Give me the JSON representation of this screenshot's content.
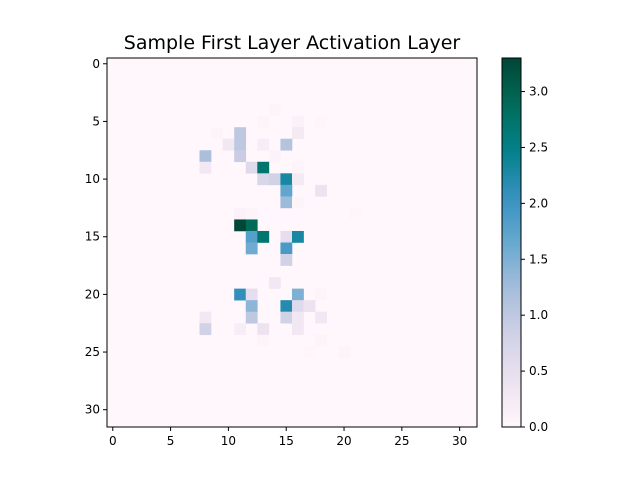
{
  "chart_data": {
    "type": "heatmap",
    "title": "Sample First Layer Activation Layer",
    "xlabel": "",
    "ylabel": "",
    "rows": 32,
    "cols": 32,
    "xlim": [
      -0.5,
      31.5
    ],
    "ylim": [
      31.5,
      -0.5
    ],
    "x_ticks": [
      0,
      5,
      10,
      15,
      20,
      25,
      30
    ],
    "y_ticks": [
      0,
      5,
      10,
      15,
      20,
      25,
      30
    ],
    "colormap": "PuBuGn",
    "colorbar": {
      "min": 0.0,
      "max": 3.3,
      "ticks": [
        "0.0",
        "0.5",
        "1.0",
        "1.5",
        "2.0",
        "2.5",
        "3.0"
      ]
    },
    "background_value": 0.0,
    "cells": [
      [
        4,
        14,
        0.05
      ],
      [
        5,
        13,
        0.06
      ],
      [
        5,
        16,
        0.1
      ],
      [
        5,
        18,
        0.04
      ],
      [
        6,
        9,
        0.05
      ],
      [
        6,
        11,
        1.0
      ],
      [
        6,
        16,
        0.25
      ],
      [
        7,
        10,
        0.3
      ],
      [
        7,
        11,
        1.0
      ],
      [
        7,
        13,
        0.2
      ],
      [
        7,
        15,
        1.1
      ],
      [
        8,
        8,
        1.2
      ],
      [
        8,
        11,
        0.9
      ],
      [
        8,
        14,
        0.08
      ],
      [
        9,
        8,
        0.3
      ],
      [
        9,
        12,
        0.6
      ],
      [
        9,
        13,
        2.7
      ],
      [
        9,
        16,
        0.05
      ],
      [
        10,
        13,
        0.7
      ],
      [
        10,
        14,
        0.8
      ],
      [
        10,
        15,
        2.3
      ],
      [
        10,
        16,
        0.25
      ],
      [
        11,
        15,
        1.7
      ],
      [
        11,
        18,
        0.4
      ],
      [
        12,
        15,
        1.3
      ],
      [
        12,
        16,
        0.06
      ],
      [
        13,
        11,
        0.1
      ],
      [
        13,
        12,
        0.05
      ],
      [
        13,
        21,
        0.03
      ],
      [
        14,
        11,
        3.3
      ],
      [
        14,
        12,
        2.9
      ],
      [
        15,
        12,
        1.8
      ],
      [
        15,
        13,
        2.7
      ],
      [
        15,
        15,
        0.5
      ],
      [
        15,
        16,
        2.3
      ],
      [
        16,
        12,
        1.6
      ],
      [
        16,
        15,
        1.9
      ],
      [
        17,
        15,
        0.8
      ],
      [
        19,
        14,
        0.3
      ],
      [
        20,
        11,
        2.1
      ],
      [
        20,
        12,
        0.5
      ],
      [
        20,
        16,
        1.5
      ],
      [
        20,
        18,
        0.06
      ],
      [
        21,
        12,
        1.4
      ],
      [
        21,
        15,
        2.2
      ],
      [
        21,
        16,
        0.6
      ],
      [
        21,
        17,
        0.4
      ],
      [
        22,
        8,
        0.3
      ],
      [
        22,
        12,
        1.0
      ],
      [
        22,
        15,
        0.8
      ],
      [
        22,
        16,
        0.3
      ],
      [
        22,
        18,
        0.3
      ],
      [
        23,
        8,
        0.8
      ],
      [
        23,
        11,
        0.2
      ],
      [
        23,
        13,
        0.4
      ],
      [
        23,
        16,
        0.3
      ],
      [
        24,
        13,
        0.05
      ],
      [
        24,
        18,
        0.05
      ],
      [
        25,
        17,
        0.04
      ],
      [
        25,
        20,
        0.05
      ]
    ]
  }
}
